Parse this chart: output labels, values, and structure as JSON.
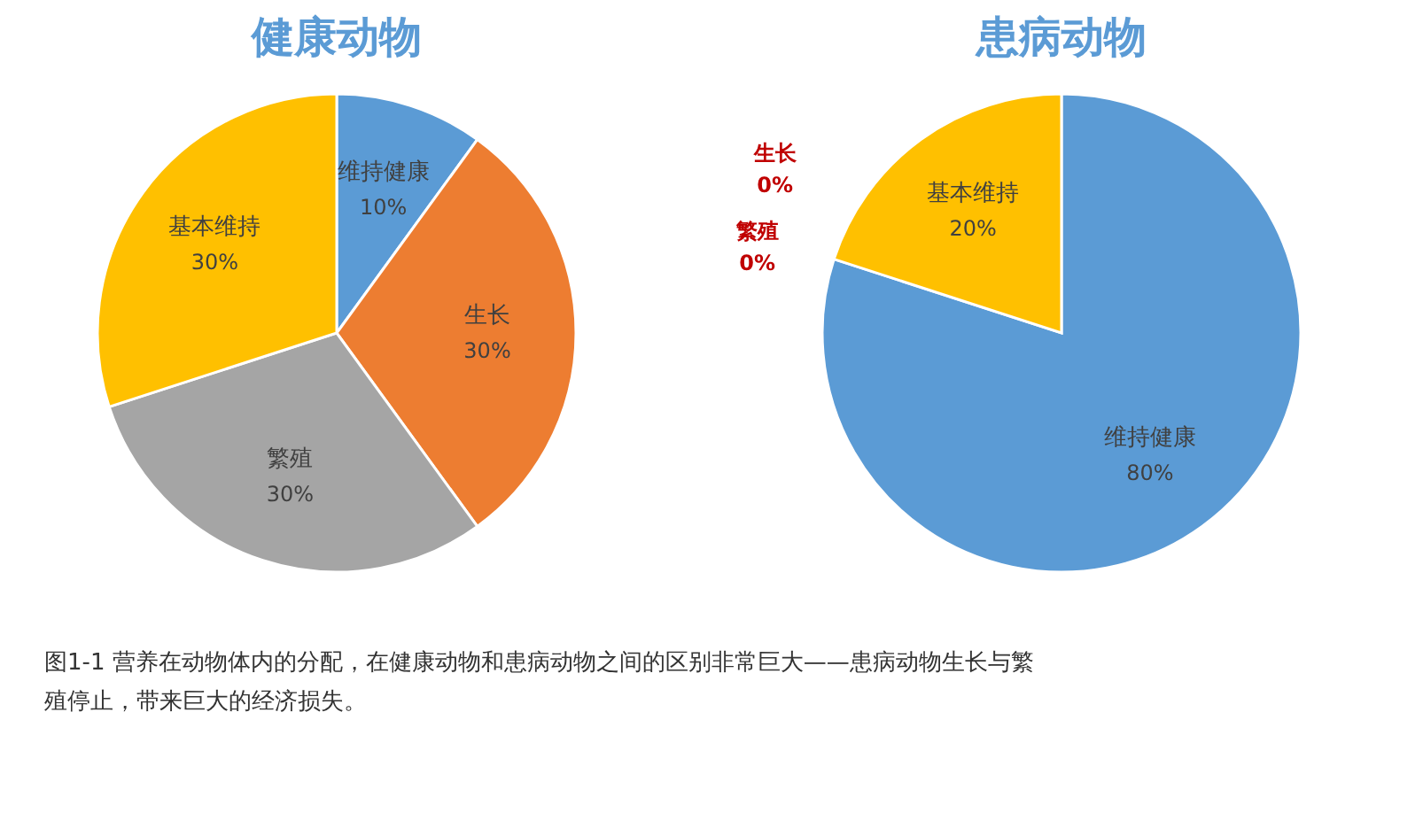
{
  "chart_data": [
    {
      "type": "pie",
      "title": "健康动物",
      "categories": [
        "维持健康",
        "生长",
        "繁殖",
        "基本维持"
      ],
      "values": [
        10,
        30,
        30,
        30
      ],
      "colors": [
        "#5b9bd5",
        "#ed7d31",
        "#a5a5a5",
        "#ffc000"
      ],
      "value_labels": [
        "10%",
        "30%",
        "30%",
        "30%"
      ],
      "legend": false
    },
    {
      "type": "pie",
      "title": "患病动物",
      "categories": [
        "维持健康",
        "生长",
        "繁殖",
        "基本维持"
      ],
      "values": [
        80,
        0,
        0,
        20
      ],
      "colors": [
        "#5b9bd5",
        "#ed7d31",
        "#a5a5a5",
        "#ffc000"
      ],
      "value_labels": [
        "80%",
        "0%",
        "0%",
        "20%"
      ],
      "legend": false,
      "annotations": [
        "图1-1  营养在动物体内的分配，在健康动物和患病动物之间的区别非常巨大——患病动物生长与繁殖停止，带来巨大的经济损失。"
      ]
    }
  ]
}
